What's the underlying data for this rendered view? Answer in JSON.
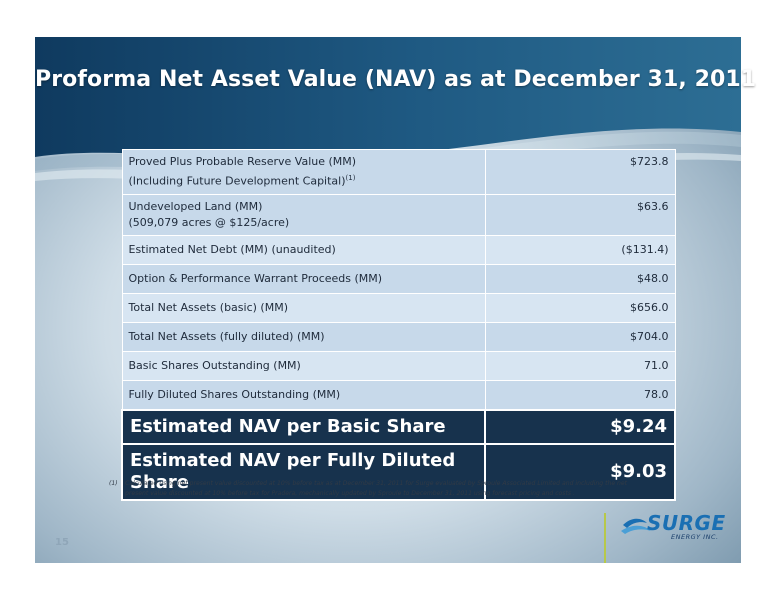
{
  "slide": {
    "title": "Proforma Net Asset Value (NAV) as at December 31, 2011",
    "page_number": "15"
  },
  "table": {
    "rows": [
      {
        "label_line1": "Proved Plus Probable Reserve Value (MM)",
        "label_line2": "(Including Future Development Capital)",
        "superscript": "(1)",
        "value": "$723.8"
      },
      {
        "label_line1": "Undeveloped Land (MM)",
        "label_line2": "(509,079 acres @ $125/acre)",
        "value": "$63.6"
      },
      {
        "label": "Estimated Net Debt (MM) (unaudited)",
        "value": "($131.4)"
      },
      {
        "label": "Option & Performance Warrant Proceeds (MM)",
        "value": "$48.0"
      },
      {
        "label": "Total Net Assets (basic) (MM)",
        "value": "$656.0"
      },
      {
        "label": "Total Net Assets (fully diluted) (MM)",
        "value": "$704.0"
      },
      {
        "label": "Basic Shares Outstanding (MM)",
        "value": "71.0"
      },
      {
        "label": "Fully Diluted Shares Outstanding (MM)",
        "value": "78.0"
      }
    ],
    "summary": [
      {
        "label": "Estimated NAV per Basic Share",
        "value": "$9.24"
      },
      {
        "label": "Estimated NAV per Fully Diluted Share",
        "value": "$9.03"
      }
    ]
  },
  "footnote": {
    "number": "(1)",
    "text": "Calculated using net present value discounted at 10% before tax as at December 31, 2011 for Surge evaluated by Sproule Associated Limited and including the net present value discounted at 10% before tax for Pradera, mechanically updated by Sproule to December 31, 2011 using forecast pricing and costs ."
  },
  "logo": {
    "name": "SURGE",
    "subtitle": "ENERGY INC."
  },
  "colors": {
    "title_band": "#1f4e74",
    "table_row": "#c7d9ea",
    "summary_row": "#17324d",
    "accent_line": "#b7c84a",
    "logo_blue": "#1a6fb3"
  }
}
